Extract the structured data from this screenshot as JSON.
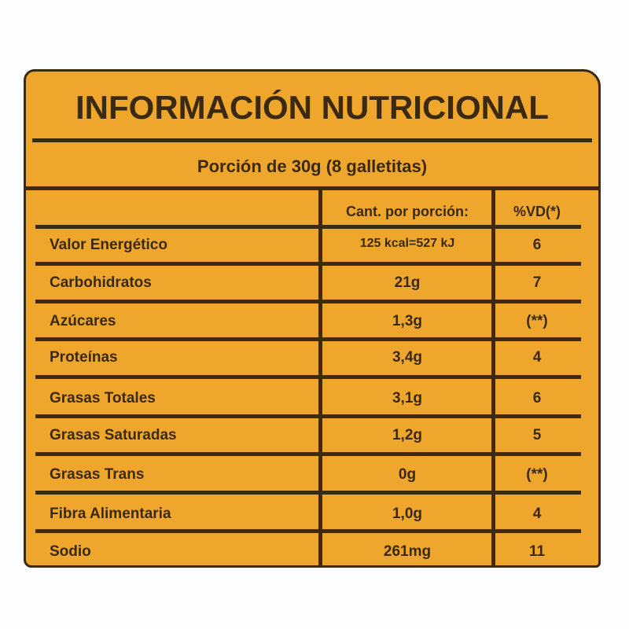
{
  "title": "INFORMACIÓN NUTRICIONAL",
  "portion": "Porción de 30g (8 galletitas)",
  "headers": {
    "amount": "Cant. por porción:",
    "dv": "%VD(*)"
  },
  "rows": [
    {
      "name": "Valor Energético",
      "amount": "125 kcal=527 kJ",
      "dv": "6"
    },
    {
      "name": "Carbohidratos",
      "amount": "21g",
      "dv": "7"
    },
    {
      "name": "Azúcares",
      "amount": "1,3g",
      "dv": "(**)"
    },
    {
      "name": "Proteínas",
      "amount": "3,4g",
      "dv": "4"
    },
    {
      "name": "Grasas Totales",
      "amount": "3,1g",
      "dv": "6"
    },
    {
      "name": "Grasas Saturadas",
      "amount": "1,2g",
      "dv": "5"
    },
    {
      "name": "Grasas Trans",
      "amount": "0g",
      "dv": "(**)"
    },
    {
      "name": "Fibra Alimentaria",
      "amount": "1,0g",
      "dv": "4"
    },
    {
      "name": "Sodio",
      "amount": "261mg",
      "dv": "11"
    }
  ],
  "colors": {
    "background": "#eea62c",
    "ink": "#3b2a12"
  }
}
